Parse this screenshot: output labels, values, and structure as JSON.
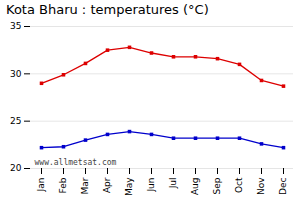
{
  "chart_data": {
    "type": "line",
    "title": "Kota Bharu : temperatures (°C)",
    "categories": [
      "Jan",
      "Feb",
      "Mar",
      "Apr",
      "May",
      "Jun",
      "Jul",
      "Aug",
      "Sep",
      "Oct",
      "Nov",
      "Dec"
    ],
    "series": [
      {
        "color": "#dd0000",
        "values": [
          29.0,
          29.9,
          31.1,
          32.5,
          32.8,
          32.2,
          31.8,
          31.8,
          31.6,
          31.0,
          29.3,
          28.7
        ]
      },
      {
        "color": "#0000cc",
        "values": [
          22.2,
          22.3,
          23.0,
          23.6,
          23.9,
          23.6,
          23.2,
          23.2,
          23.2,
          23.2,
          22.6,
          22.2
        ]
      }
    ],
    "marker": "square",
    "ylim": [
      20,
      35
    ],
    "yticks": [
      20,
      25,
      30,
      35
    ],
    "grid": true,
    "annotations": [
      "www.allmetsat.com"
    ]
  }
}
